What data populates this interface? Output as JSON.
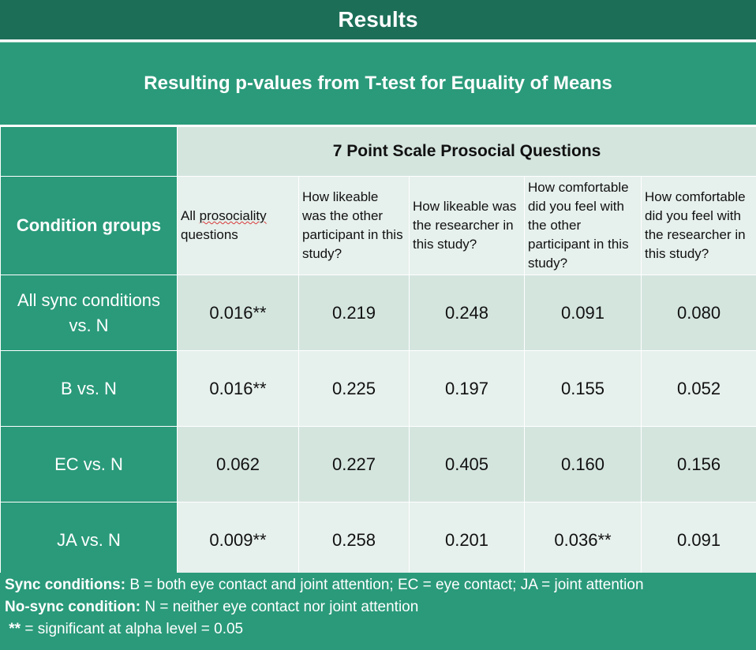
{
  "title": "Results",
  "subtitle": "Resulting p-values from T-test for Equality of Means",
  "table": {
    "scale_header": "7 Point Scale Prosocial Questions",
    "group_header": "Condition groups",
    "questions": [
      {
        "pre": "All ",
        "mark": "prosociality",
        "post": " questions"
      },
      {
        "pre": "How likeable was the other participant in this study?",
        "mark": "",
        "post": ""
      },
      {
        "pre": "How likeable was the researcher in this study?",
        "mark": "",
        "post": ""
      },
      {
        "pre": "How comfortable did you feel with the other participant in this study?",
        "mark": "",
        "post": ""
      },
      {
        "pre": "How comfortable did you feel with the researcher in this study?",
        "mark": "",
        "post": ""
      }
    ],
    "rows": [
      {
        "label": "All sync conditions vs. N",
        "values": [
          "0.016**",
          "0.219",
          "0.248",
          "0.091",
          "0.080"
        ]
      },
      {
        "label": "B vs. N",
        "values": [
          "0.016**",
          "0.225",
          "0.197",
          "0.155",
          "0.052"
        ]
      },
      {
        "label": "EC vs. N",
        "values": [
          "0.062",
          "0.227",
          "0.405",
          "0.160",
          "0.156"
        ]
      },
      {
        "label": "JA vs. N",
        "values": [
          "0.009**",
          "0.258",
          "0.201",
          "0.036**",
          "0.091"
        ]
      }
    ]
  },
  "footer": {
    "sync_label": "Sync conditions:",
    "sync_text": " B = both eye contact and joint attention; EC = eye contact; JA = joint attention",
    "nosync_label": "No-sync condition:",
    "nosync_text": " N = neither eye contact nor joint attention",
    "sig_label": " **",
    "sig_text": " = significant at alpha level = 0.05"
  },
  "colors": {
    "header": "#1c6e57",
    "accent": "#2a9a7a",
    "cell_dark": "#d4e5de",
    "cell_light": "#e6f0ec"
  }
}
